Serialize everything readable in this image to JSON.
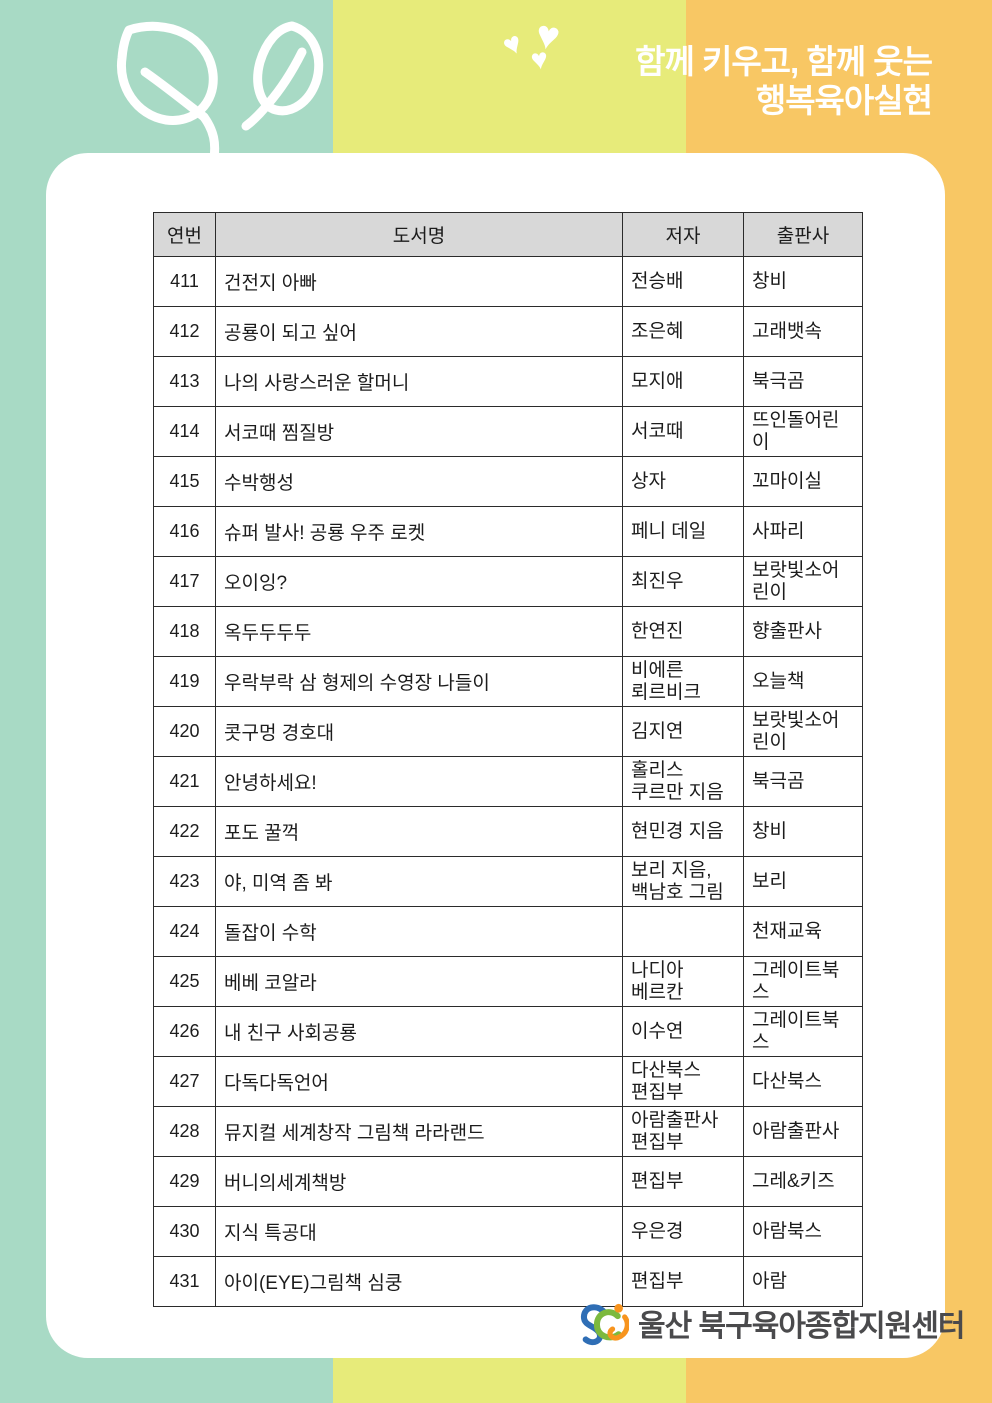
{
  "header": {
    "slogan_line1": "함께 키우고, 함께 웃는",
    "slogan_line2": "행복육아실현",
    "heart_glyph": "♥",
    "colors": {
      "mint": "#a8dac5",
      "lime": "#e7eb7a",
      "orange": "#f8c764"
    }
  },
  "table": {
    "columns": [
      "연번",
      "도서명",
      "저자",
      "출판사"
    ],
    "rows": [
      {
        "no": "411",
        "title": "건전지 아빠",
        "author": "전승배",
        "publisher": "창비"
      },
      {
        "no": "412",
        "title": "공룡이 되고 싶어",
        "author": "조은혜",
        "publisher": "고래뱃속"
      },
      {
        "no": "413",
        "title": "나의 사랑스러운 할머니",
        "author": "모지애",
        "publisher": "북극곰"
      },
      {
        "no": "414",
        "title": "서코때 찜질방",
        "author": "서코때",
        "publisher": "뜨인돌어린\n이"
      },
      {
        "no": "415",
        "title": "수박행성",
        "author": "상자",
        "publisher": "꼬마이실"
      },
      {
        "no": "416",
        "title": "슈퍼 발사! 공룡 우주 로켓",
        "author": "페니 데일",
        "publisher": "사파리"
      },
      {
        "no": "417",
        "title": "오이잉?",
        "author": "최진우",
        "publisher": "보랏빛소어\n린이"
      },
      {
        "no": "418",
        "title": "옥두두두두",
        "author": "한연진",
        "publisher": "향출판사"
      },
      {
        "no": "419",
        "title": "우락부락 삼 형제의 수영장 나들이",
        "author": "비에른\n뢰르비크",
        "publisher": "오늘책"
      },
      {
        "no": "420",
        "title": "콧구멍 경호대",
        "author": "김지연",
        "publisher": "보랏빛소어\n린이"
      },
      {
        "no": "421",
        "title": "안녕하세요!",
        "author": "홀리스\n쿠르만 지음",
        "publisher": "북극곰"
      },
      {
        "no": "422",
        "title": "포도 꿀꺽",
        "author": "현민경 지음",
        "publisher": "창비"
      },
      {
        "no": "423",
        "title": "야, 미역 좀 봐",
        "author": "보리 지음,\n백남호 그림",
        "publisher": "보리"
      },
      {
        "no": "424",
        "title": "돌잡이 수학",
        "author": "",
        "publisher": "천재교육"
      },
      {
        "no": "425",
        "title": "베베 코알라",
        "author": "나디아\n베르칸",
        "publisher": "그레이트북\n스"
      },
      {
        "no": "426",
        "title": "내 친구 사회공룡",
        "author": "이수연",
        "publisher": "그레이트북\n스"
      },
      {
        "no": "427",
        "title": "다독다독언어",
        "author": "다산북스\n편집부",
        "publisher": "다산북스"
      },
      {
        "no": "428",
        "title": "뮤지컬 세계창작 그림책 라라랜드",
        "author": "아람출판사\n편집부",
        "publisher": "아람출판사"
      },
      {
        "no": "429",
        "title": "버니의세계책방",
        "author": "편집부",
        "publisher": "그레&키즈"
      },
      {
        "no": "430",
        "title": "지식 특공대",
        "author": "우은경",
        "publisher": "아람북스"
      },
      {
        "no": "431",
        "title": "아이(EYE)그림책 심쿵",
        "author": "편집부",
        "publisher": "아람"
      }
    ]
  },
  "footer": {
    "org_name": "울산 북구육아종합지원센터",
    "logo_colors": {
      "blue": "#2f6eb5",
      "green": "#7cb93e",
      "orange": "#f7941e"
    }
  }
}
